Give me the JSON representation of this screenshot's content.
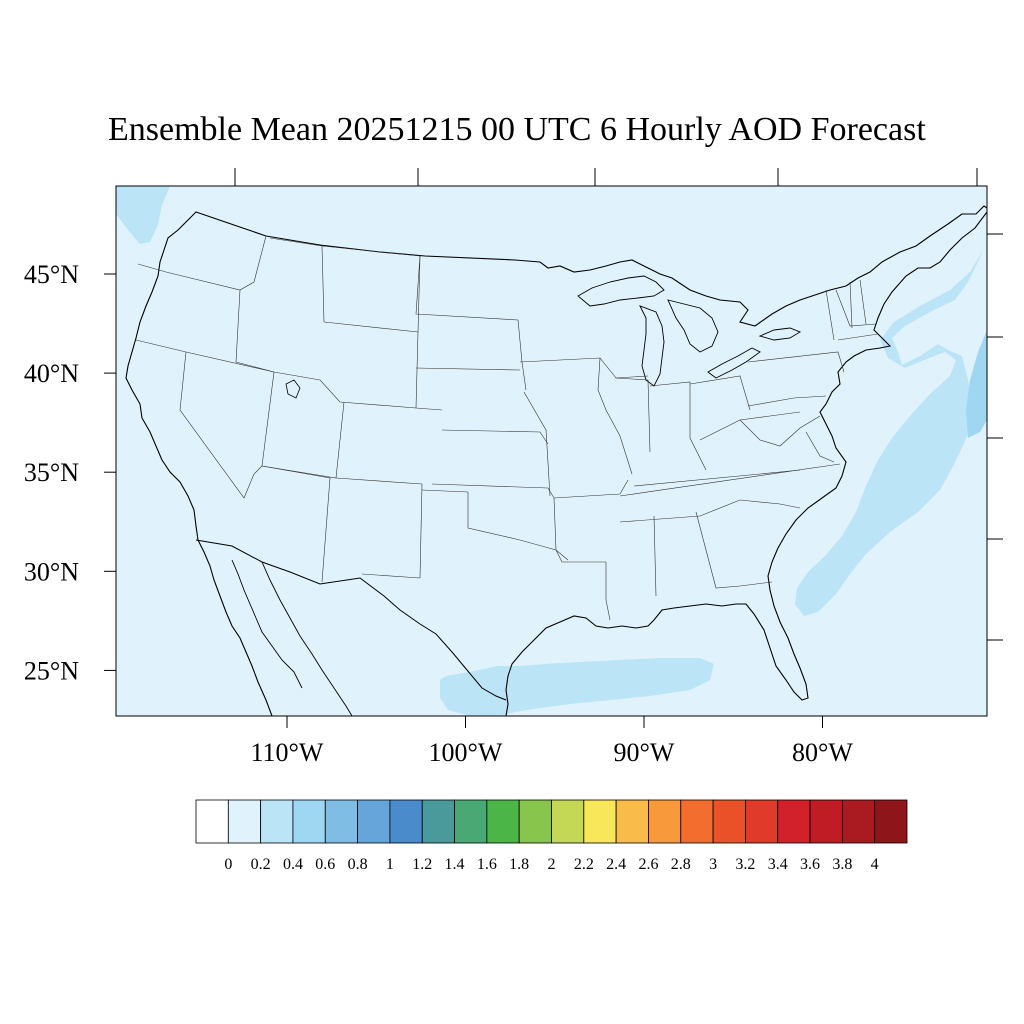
{
  "title": "Ensemble Mean 20251215 00 UTC 6 Hourly AOD Forecast",
  "map": {
    "extent": {
      "lon_min": -118.5,
      "lon_max": -69.6,
      "lat_min": 22.7,
      "lat_max": 49.4
    },
    "land_fill": "#e0f2fb",
    "water_fill": "#e0f2fb",
    "border_color": "#000000",
    "lat_ticks": [
      {
        "value": 45,
        "label": "45°N"
      },
      {
        "value": 40,
        "label": "40°N"
      },
      {
        "value": 35,
        "label": "35°N"
      },
      {
        "value": 30,
        "label": "30°N"
      },
      {
        "value": 25,
        "label": "25°N"
      }
    ],
    "lon_ticks": [
      {
        "value": -110,
        "label": "110°W"
      },
      {
        "value": -100,
        "label": "100°W"
      },
      {
        "value": -90,
        "label": "90°W"
      },
      {
        "value": -80,
        "label": "80°W"
      }
    ],
    "aod_regions": [
      {
        "name": "atlantic-plume",
        "level": "0.2-0.4",
        "color": "#bce4f7"
      },
      {
        "name": "atlantic-core",
        "level": "0.4-0.6",
        "color": "#9fd7f3"
      },
      {
        "name": "gulf-plume",
        "level": "0.2-0.4",
        "color": "#bce4f7"
      },
      {
        "name": "pacific-edge",
        "level": "0.2-0.4",
        "color": "#bce4f7"
      }
    ]
  },
  "colorbar": {
    "levels": [
      "0",
      "0.2",
      "0.4",
      "0.6",
      "0.8",
      "1",
      "1.2",
      "1.4",
      "1.6",
      "1.8",
      "2",
      "2.2",
      "2.4",
      "2.6",
      "2.8",
      "3",
      "3.2",
      "3.4",
      "3.6",
      "3.8",
      "4"
    ],
    "colors": [
      "#ffffff",
      "#e0f2fb",
      "#bce4f7",
      "#9fd7f3",
      "#7fbde4",
      "#65a5d9",
      "#4a8ccb",
      "#4a9a9b",
      "#4aa874",
      "#4bb547",
      "#88c54d",
      "#c5d855",
      "#f9e75a",
      "#f9bc4a",
      "#f89a3c",
      "#f36d2e",
      "#ea5129",
      "#e03b2a",
      "#d3212b",
      "#bf1c26",
      "#a91a21",
      "#8e161b"
    ]
  }
}
